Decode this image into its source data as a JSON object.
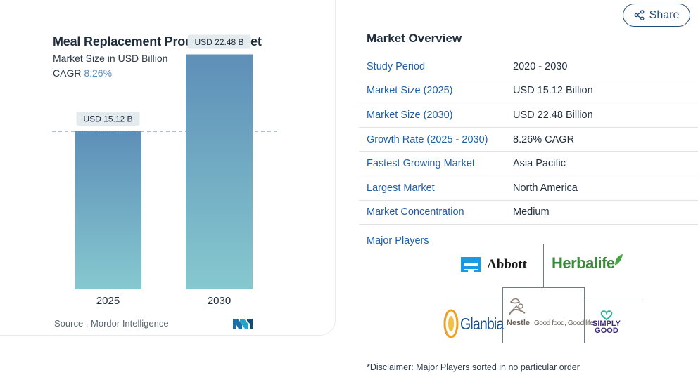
{
  "chart": {
    "title": "Meal Replacement Products Market",
    "subtitle": "Market Size in USD Billion",
    "cagr_label": "CAGR",
    "cagr_value": "8.26%",
    "source": "Source : Mordor Intelligence"
  },
  "chart_data": {
    "type": "bar",
    "title": "Meal Replacement Products Market",
    "subtitle": "Market Size in USD Billion",
    "categories": [
      "2025",
      "2030"
    ],
    "values": [
      15.12,
      22.48
    ],
    "data_labels": [
      "USD 15.12 B",
      "USD 22.48 B"
    ],
    "ylabel": "",
    "xlabel": "",
    "ylim": [
      0,
      25
    ],
    "grid": false,
    "reference_line": 15.12,
    "colors": {
      "bar_top": "#5e8fb8",
      "bar_bottom": "#86c8cf",
      "label_bg": "#e4ebef",
      "ref_line": "#5b7f9e"
    }
  },
  "share": {
    "label": "Share",
    "icon": "share-icon"
  },
  "overview": {
    "title": "Market Overview",
    "rows": [
      {
        "key": "Study Period",
        "value": "2020 - 2030"
      },
      {
        "key": "Market Size (2025)",
        "value": "USD 15.12 Billion"
      },
      {
        "key": "Market Size (2030)",
        "value": "USD 22.48 Billion"
      },
      {
        "key": "Growth Rate (2025 - 2030)",
        "value": "8.26% CAGR"
      },
      {
        "key": "Fastest Growing Market",
        "value": "Asia Pacific"
      },
      {
        "key": "Largest Market",
        "value": "North America"
      },
      {
        "key": "Market Concentration",
        "value": "Medium"
      }
    ]
  },
  "players": {
    "label": "Major Players",
    "names": [
      "Abbott",
      "Herbalife",
      "Glanbia",
      "Nestle",
      "Simply Good"
    ],
    "nestle_tagline": "Good food, Good life",
    "simply_lines": [
      "SIMPLY",
      "GOOD"
    ]
  },
  "disclaimer": "*Disclaimer: Major Players sorted in no particular order",
  "colors": {
    "accent": "#1f5fa8",
    "share_border": "#1f4e79"
  }
}
